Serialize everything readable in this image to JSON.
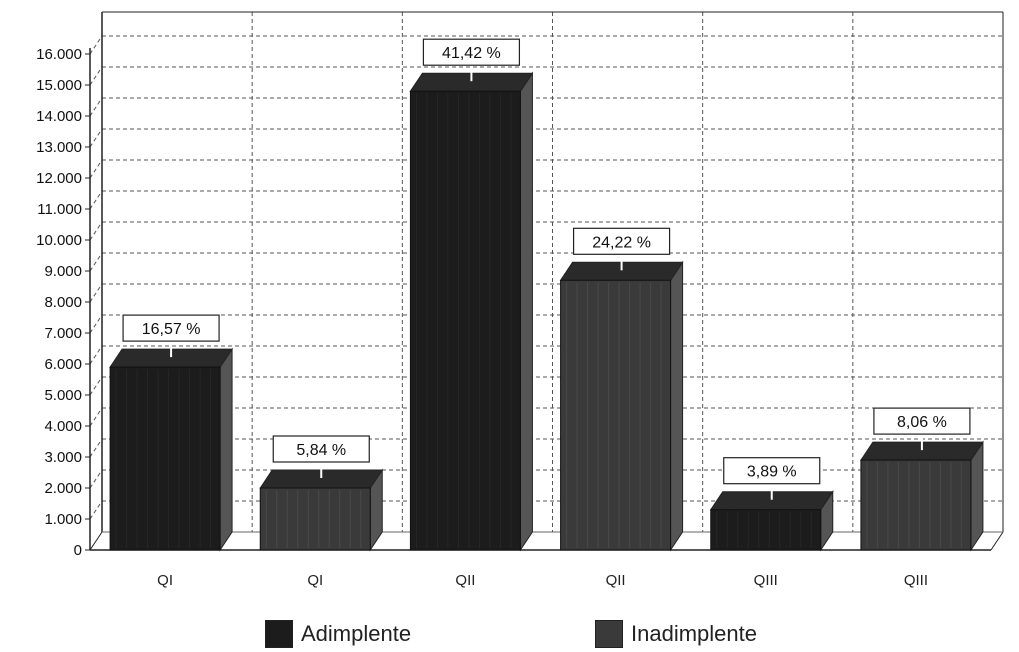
{
  "chart_data": {
    "type": "bar",
    "categories": [
      "QI",
      "QI",
      "QII",
      "QII",
      "QIII",
      "QIII"
    ],
    "values": [
      5900,
      2000,
      14800,
      8700,
      1300,
      2900
    ],
    "series_of_bar": [
      "Adimplente",
      "Inadimplente",
      "Adimplente",
      "Inadimplente",
      "Adimplente",
      "Inadimplente"
    ],
    "data_labels": [
      "16,57 %",
      "5,84 %",
      "41,42 %",
      "24,22 %",
      "3,89 %",
      "8,06 %"
    ],
    "yticks": [
      "0",
      "1.000",
      "2.000",
      "3.000",
      "4.000",
      "5.000",
      "6.000",
      "7.000",
      "8.000",
      "9.000",
      "10.000",
      "11.000",
      "12.000",
      "13.000",
      "14.000",
      "15.000",
      "16.000"
    ],
    "ylim": [
      0,
      16000
    ],
    "grid": true,
    "legend": {
      "position": "bottom",
      "items": [
        {
          "label": "Adimplente",
          "color": "#1c1c1c"
        },
        {
          "label": "Inadimplente",
          "color": "#3a3a3a"
        }
      ]
    },
    "colors": {
      "Adimplente": "#1c1c1c",
      "Inadimplente": "#3a3a3a"
    }
  }
}
